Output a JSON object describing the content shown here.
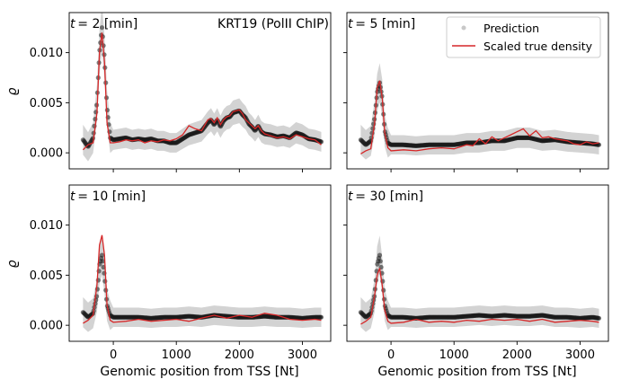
{
  "figure": {
    "gene_label": "KRT19 (PolII ChIP)",
    "y_axis_label": "ϱ",
    "x_axis_label": "Genomic position from TSS [Nt]",
    "legend": {
      "prediction": "Prediction",
      "true_density": "Scaled true density"
    },
    "colors": {
      "prediction": "#1a1a1a",
      "band": "#d3d3d3",
      "true_density": "#d62728"
    }
  },
  "chart_data": {
    "type": "line",
    "xlim": [
      -700,
      3450
    ],
    "ylim": [
      -0.0016,
      0.014
    ],
    "x_ticks": [
      0,
      1000,
      2000,
      3000
    ],
    "x_tick_labels": [
      "0",
      "1000",
      "2000",
      "3000"
    ],
    "y_ticks": [
      0.0,
      0.005,
      0.01
    ],
    "y_tick_labels": [
      "0.000",
      "0.005",
      "0.010"
    ],
    "panels": [
      {
        "title": "t = 2 [min]",
        "title_math": "t",
        "title_rest": "= 2 [min]",
        "series": [
          {
            "name": "Prediction",
            "x": [
              -480,
              -400,
              -320,
              -260,
              -220,
              -180,
              -140,
              -100,
              -50,
              0,
              100,
              200,
              300,
              400,
              500,
              600,
              700,
              800,
              900,
              1000,
              1100,
              1200,
              1300,
              1400,
              1500,
              1550,
              1600,
              1650,
              1700,
              1750,
              1800,
              1850,
              1900,
              2000,
              2050,
              2100,
              2150,
              2200,
              2250,
              2300,
              2350,
              2400,
              2500,
              2600,
              2700,
              2800,
              2900,
              3000,
              3100,
              3200,
              3300
            ],
            "y": [
              0.0013,
              0.0006,
              0.0015,
              0.005,
              0.01,
              0.0125,
              0.0095,
              0.0045,
              0.0015,
              0.0013,
              0.0014,
              0.0015,
              0.0013,
              0.0014,
              0.0013,
              0.0014,
              0.0012,
              0.0012,
              0.001,
              0.001,
              0.0014,
              0.0018,
              0.002,
              0.0022,
              0.003,
              0.0033,
              0.0028,
              0.0033,
              0.0026,
              0.0032,
              0.0035,
              0.0036,
              0.004,
              0.0042,
              0.0038,
              0.0035,
              0.0029,
              0.0026,
              0.0022,
              0.0027,
              0.0021,
              0.0019,
              0.0018,
              0.0016,
              0.0017,
              0.0015,
              0.002,
              0.0018,
              0.0014,
              0.0013,
              0.0011
            ]
          },
          {
            "name": "Scaled true density",
            "x": [
              -480,
              -400,
              -320,
              -260,
              -220,
              -180,
              -140,
              -100,
              -50,
              0,
              100,
              200,
              300,
              400,
              500,
              600,
              700,
              800,
              900,
              1000,
              1100,
              1200,
              1300,
              1400,
              1500,
              1550,
              1600,
              1650,
              1700,
              1750,
              1800,
              1850,
              1900,
              2000,
              2050,
              2100,
              2150,
              2200,
              2250,
              2300,
              2350,
              2400,
              2500,
              2600,
              2700,
              2800,
              2900,
              3000,
              3100,
              3200,
              3300
            ],
            "y": [
              0.0003,
              0.0008,
              0.001,
              0.004,
              0.01,
              0.012,
              0.009,
              0.003,
              0.001,
              0.001,
              0.0011,
              0.0013,
              0.0012,
              0.0013,
              0.001,
              0.0012,
              0.0011,
              0.0013,
              0.0012,
              0.0014,
              0.0018,
              0.0027,
              0.0024,
              0.0022,
              0.0033,
              0.0034,
              0.003,
              0.0035,
              0.0028,
              0.0033,
              0.0036,
              0.0037,
              0.0041,
              0.0043,
              0.0039,
              0.0033,
              0.003,
              0.0027,
              0.0024,
              0.0027,
              0.0022,
              0.0019,
              0.0017,
              0.0015,
              0.0016,
              0.0014,
              0.0018,
              0.0016,
              0.0014,
              0.0013,
              0.0008
            ]
          }
        ]
      },
      {
        "title": "t = 5 [min]",
        "title_math": "t",
        "title_rest": "= 5 [min]",
        "series": [
          {
            "name": "Prediction",
            "x": [
              -480,
              -400,
              -320,
              -260,
              -220,
              -180,
              -140,
              -100,
              -50,
              0,
              200,
              400,
              600,
              800,
              1000,
              1200,
              1400,
              1600,
              1800,
              2000,
              2200,
              2400,
              2600,
              2800,
              3000,
              3200,
              3300
            ],
            "y": [
              0.0013,
              0.0008,
              0.0012,
              0.0035,
              0.006,
              0.007,
              0.0055,
              0.0022,
              0.001,
              0.0008,
              0.0008,
              0.0007,
              0.0008,
              0.0008,
              0.0008,
              0.001,
              0.001,
              0.0012,
              0.0012,
              0.0015,
              0.0015,
              0.0012,
              0.0013,
              0.0011,
              0.001,
              0.0009,
              0.0008
            ]
          },
          {
            "name": "Scaled true density",
            "x": [
              -480,
              -400,
              -320,
              -260,
              -220,
              -180,
              -140,
              -100,
              -50,
              0,
              200,
              400,
              600,
              800,
              1000,
              1100,
              1200,
              1300,
              1400,
              1500,
              1600,
              1700,
              1800,
              1900,
              2000,
              2100,
              2200,
              2300,
              2400,
              2500,
              2600,
              2700,
              2800,
              2900,
              3000,
              3100,
              3200,
              3300
            ],
            "y": [
              -0.0001,
              0.0002,
              0.0004,
              0.003,
              0.0065,
              0.0072,
              0.0055,
              0.002,
              0.0005,
              0.0002,
              0.0003,
              0.0002,
              0.0004,
              0.0005,
              0.0004,
              0.0006,
              0.0008,
              0.0007,
              0.0014,
              0.0009,
              0.0016,
              0.0012,
              0.0015,
              0.0018,
              0.0021,
              0.0024,
              0.0017,
              0.0022,
              0.0015,
              0.0016,
              0.0014,
              0.0013,
              0.0012,
              0.0009,
              0.0008,
              0.0011,
              0.0009,
              0.001
            ]
          }
        ]
      },
      {
        "title": "t = 10 [min]",
        "title_math": "t",
        "title_rest": "= 10 [min]",
        "series": [
          {
            "name": "Prediction",
            "x": [
              -480,
              -400,
              -320,
              -260,
              -220,
              -180,
              -140,
              -100,
              -50,
              0,
              200,
              400,
              600,
              800,
              1000,
              1200,
              1400,
              1600,
              1800,
              2000,
              2200,
              2400,
              2600,
              2800,
              3000,
              3200,
              3300
            ],
            "y": [
              0.0013,
              0.0008,
              0.0012,
              0.003,
              0.006,
              0.007,
              0.005,
              0.002,
              0.001,
              0.0008,
              0.0008,
              0.0008,
              0.0007,
              0.0008,
              0.0008,
              0.0009,
              0.0008,
              0.001,
              0.0009,
              0.0008,
              0.0008,
              0.0009,
              0.0008,
              0.0008,
              0.0007,
              0.0008,
              0.0008
            ]
          },
          {
            "name": "Scaled true density",
            "x": [
              -480,
              -400,
              -320,
              -260,
              -220,
              -180,
              -140,
              -100,
              -50,
              0,
              200,
              400,
              600,
              800,
              1000,
              1200,
              1400,
              1600,
              1800,
              2000,
              2200,
              2400,
              2600,
              2800,
              3000,
              3200,
              3300
            ],
            "y": [
              0.0002,
              0.0005,
              0.001,
              0.004,
              0.008,
              0.009,
              0.007,
              0.002,
              0.0005,
              0.0003,
              0.0004,
              0.0006,
              0.0004,
              0.0005,
              0.0006,
              0.0004,
              0.0007,
              0.001,
              0.0007,
              0.001,
              0.0008,
              0.0012,
              0.001,
              0.0006,
              0.0005,
              0.0006,
              0.0005
            ]
          }
        ]
      },
      {
        "title": "t = 30 [min]",
        "title_math": "t",
        "title_rest": "= 30 [min]",
        "series": [
          {
            "name": "Prediction",
            "x": [
              -480,
              -400,
              -320,
              -260,
              -220,
              -180,
              -140,
              -100,
              -50,
              0,
              200,
              400,
              600,
              800,
              1000,
              1200,
              1400,
              1600,
              1800,
              2000,
              2200,
              2400,
              2600,
              2800,
              3000,
              3200,
              3300
            ],
            "y": [
              0.0013,
              0.0008,
              0.0012,
              0.003,
              0.006,
              0.007,
              0.005,
              0.002,
              0.001,
              0.0008,
              0.0008,
              0.0007,
              0.0008,
              0.0008,
              0.0008,
              0.0009,
              0.001,
              0.0009,
              0.001,
              0.0009,
              0.0009,
              0.001,
              0.0008,
              0.0008,
              0.0007,
              0.0008,
              0.0007
            ]
          },
          {
            "name": "Scaled true density",
            "x": [
              -480,
              -400,
              -320,
              -260,
              -220,
              -180,
              -140,
              -100,
              -50,
              0,
              200,
              400,
              600,
              800,
              1000,
              1200,
              1400,
              1600,
              1800,
              2000,
              2200,
              2400,
              2600,
              2800,
              3000,
              3200,
              3300
            ],
            "y": [
              0.0001,
              0.0004,
              0.0008,
              0.003,
              0.005,
              0.0057,
              0.004,
              0.0015,
              0.0004,
              0.0002,
              0.0003,
              0.0006,
              0.0003,
              0.0004,
              0.0003,
              0.0005,
              0.0004,
              0.0006,
              0.0005,
              0.0006,
              0.0004,
              0.0006,
              0.0003,
              0.0004,
              0.0005,
              0.0004,
              0.0003
            ]
          }
        ]
      }
    ]
  }
}
